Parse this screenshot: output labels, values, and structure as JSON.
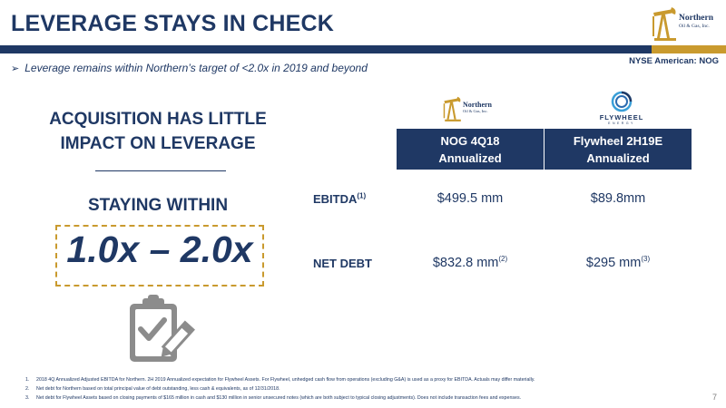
{
  "slide": {
    "title": "LEVERAGE STAYS IN CHECK",
    "exchange": "NYSE American: NOG",
    "bullet": "Leverage remains within Northern’s target of <2.0x in 2019 and beyond",
    "page_number": "7"
  },
  "logo": {
    "name": "Northern",
    "sub": "Oil & Gas, Inc."
  },
  "left_panel": {
    "heading_line1": "ACQUISITION HAS LITTLE",
    "heading_line2": "IMPACT ON LEVERAGE",
    "staying": "STAYING WITHIN",
    "range": "1.0x – 2.0x"
  },
  "table": {
    "logo_nog_name": "Northern",
    "logo_nog_sub": "Oil & Gas, Inc.",
    "logo_flywheel_name": "FLYWHEEL",
    "logo_flywheel_sub": "ENERGY",
    "columns": [
      {
        "line1": "NOG 4Q18",
        "line2": "Annualized"
      },
      {
        "line1": "Flywheel 2H19E",
        "line2": "Annualized"
      }
    ],
    "rows": [
      {
        "label": "EBITDA",
        "label_note": "(1)",
        "values": [
          {
            "value": "$499.5 mm",
            "note": ""
          },
          {
            "value": "$89.8mm",
            "note": ""
          }
        ]
      },
      {
        "label": "NET DEBT",
        "label_note": "",
        "values": [
          {
            "value": "$832.8 mm",
            "note": "(2)"
          },
          {
            "value": "$295 mm",
            "note": "(3)"
          }
        ]
      }
    ]
  },
  "footnotes": [
    {
      "num": "1.",
      "text": "2018 4Q Annualized Adjusted EBITDA for Northern. 2H 2019 Annualized expectation for Flywheel Assets. For Flywheel, unhedged cash flow from operations (excluding G&A) is used as a proxy for EBITDA. Actuals may differ materially."
    },
    {
      "num": "2.",
      "text": "Net debt for Northern based on total principal value of debt outstanding, less cash & equivalents, as of 12/31/2018."
    },
    {
      "num": "3.",
      "text": "Net debt for Flywheel Assets based on closing payments of $165 million in cash and $130 million in senior unsecured notes (which are both subject to typical closing adjustments). Does not include transaction fees and expenses."
    }
  ],
  "colors": {
    "navy": "#1f3864",
    "gold": "#c99a2e",
    "icon_gray": "#8c8c8c"
  },
  "icons": [
    "pumpjack-logo-icon",
    "flywheel-logo-icon",
    "clipboard-check-icon",
    "arrow-bullet-icon"
  ]
}
